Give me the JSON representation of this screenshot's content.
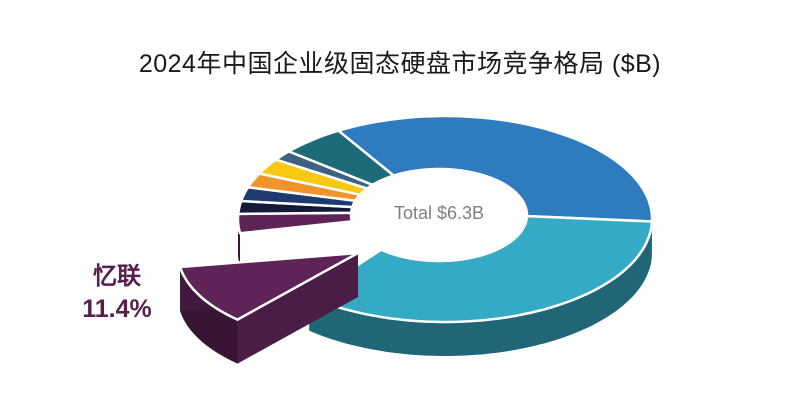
{
  "title": "2024年中国企业级固态硬盘市场竞争格局 ($B)",
  "chart_data": {
    "type": "pie",
    "style": "3d-exploded-donut",
    "title": "2024年中国企业级固态硬盘市场竞争格局 ($B)",
    "total_label": "Total $6.3B",
    "total_value_usd_billion": 6.3,
    "callout_label": "忆联",
    "callout_pct": "11.4%",
    "legend": "none",
    "start_angle_deg": 239,
    "slices": [
      {
        "label": "",
        "pct": 34.0,
        "color": "#2E7CBE"
      },
      {
        "label": "",
        "pct": 36.0,
        "color": "#35AAC4"
      },
      {
        "label": "忆联",
        "pct": 11.4,
        "color": "#5E2458",
        "exploded": true
      },
      {
        "label": "",
        "pct": 3.0,
        "color": "#5E2458"
      },
      {
        "label": "",
        "pct": 2.0,
        "color": "#141A38"
      },
      {
        "label": "",
        "pct": 2.2,
        "color": "#1E3A6E"
      },
      {
        "label": "",
        "pct": 2.3,
        "color": "#F0932C"
      },
      {
        "label": "",
        "pct": 2.5,
        "color": "#F9C813"
      },
      {
        "label": "",
        "pct": 1.6,
        "color": "#3D6180"
      },
      {
        "label": "",
        "pct": 5.0,
        "color": "#1D6B78"
      }
    ],
    "colors": {
      "title_text": "#1A1A1A",
      "center_text": "#7F7F7F",
      "callout_text": "#571E4E",
      "background": "#FFFFFF"
    }
  }
}
